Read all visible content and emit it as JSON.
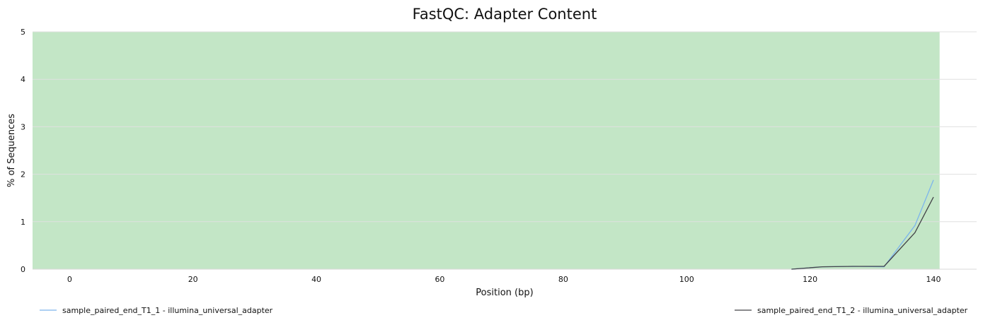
{
  "chart_data": {
    "type": "line",
    "title": "FastQC: Adapter Content",
    "xlabel": "Position (bp)",
    "ylabel": "% of Sequences",
    "xlim": [
      -6,
      147
    ],
    "ylim": [
      0,
      5
    ],
    "xticks": [
      0,
      20,
      40,
      60,
      80,
      100,
      120,
      140
    ],
    "yticks": [
      0,
      1,
      2,
      3,
      4,
      5
    ],
    "grid": "horizontal",
    "background_band": {
      "y_range": [
        0,
        5
      ],
      "x_range": [
        -6,
        141
      ],
      "color": "#c3e6c6"
    },
    "legend_position": "bottom",
    "series": [
      {
        "name": "sample_paired_end_T1_1 - illumina_universal_adapter",
        "color": "#7cb5ec",
        "x": [
          117,
          122,
          127,
          132,
          137,
          140
        ],
        "y": [
          0,
          0.05,
          0.06,
          0.05,
          0.92,
          1.88
        ]
      },
      {
        "name": "sample_paired_end_T1_2 - illumina_universal_adapter",
        "color": "#434348",
        "x": [
          117,
          122,
          127,
          132,
          137,
          140
        ],
        "y": [
          0,
          0.05,
          0.06,
          0.06,
          0.77,
          1.52
        ]
      }
    ]
  }
}
